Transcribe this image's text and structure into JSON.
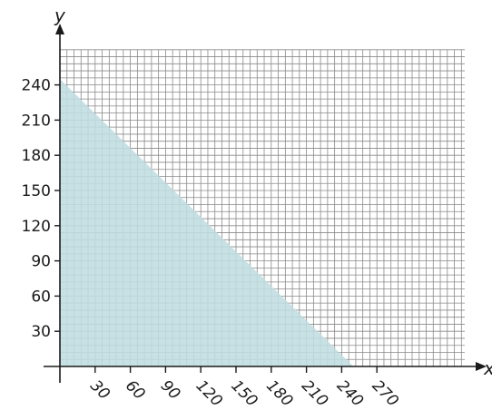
{
  "chart_data": {
    "type": "area",
    "title": "",
    "xlabel": "x",
    "ylabel": "y",
    "xlim": [
      0,
      270
    ],
    "ylim": [
      0,
      240
    ],
    "grid": true,
    "x_ticks": [
      30,
      60,
      90,
      120,
      150,
      180,
      210,
      240,
      270
    ],
    "y_ticks": [
      30,
      60,
      90,
      120,
      150,
      180,
      210,
      240
    ],
    "x_tick_labels": [
      "30",
      "60",
      "90",
      "120",
      "150",
      "180",
      "210",
      "240",
      "270"
    ],
    "y_tick_labels": [
      "30",
      "60",
      "90",
      "120",
      "150",
      "180",
      "210",
      "240"
    ],
    "series": [
      {
        "x": [
          0,
          0,
          250
        ],
        "y": [
          0,
          245,
          0
        ]
      }
    ],
    "colors": {
      "fill": "#bfdde0",
      "grid": "#8a8a8a",
      "axis": "#1a1a1a"
    }
  }
}
